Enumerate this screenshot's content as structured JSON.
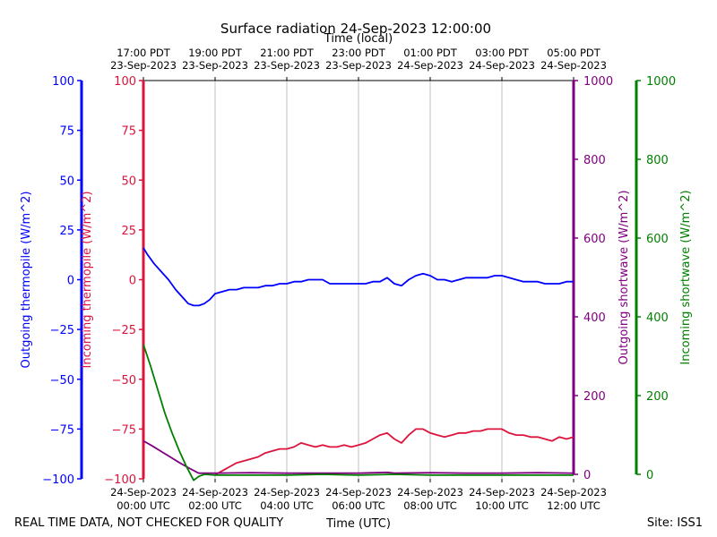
{
  "chart_data": {
    "type": "line",
    "title": "Surface radiation 24-Sep-2023 12:00:00",
    "top_axis_label": "Time (local)",
    "xlabel": "Time (UTC)",
    "xlim": [
      0,
      12
    ],
    "xtick_values": [
      0,
      2,
      4,
      6,
      8,
      10,
      12
    ],
    "xticks_utc": [
      [
        "24-Sep-2023",
        "00:00 UTC"
      ],
      [
        "24-Sep-2023",
        "02:00 UTC"
      ],
      [
        "24-Sep-2023",
        "04:00 UTC"
      ],
      [
        "24-Sep-2023",
        "06:00 UTC"
      ],
      [
        "24-Sep-2023",
        "08:00 UTC"
      ],
      [
        "24-Sep-2023",
        "10:00 UTC"
      ],
      [
        "24-Sep-2023",
        "12:00 UTC"
      ]
    ],
    "xticks_local": [
      [
        "17:00 PDT",
        "23-Sep-2023"
      ],
      [
        "19:00 PDT",
        "23-Sep-2023"
      ],
      [
        "21:00 PDT",
        "23-Sep-2023"
      ],
      [
        "23:00 PDT",
        "23-Sep-2023"
      ],
      [
        "01:00 PDT",
        "24-Sep-2023"
      ],
      [
        "03:00 PDT",
        "24-Sep-2023"
      ],
      [
        "05:00 PDT",
        "24-Sep-2023"
      ]
    ],
    "grid": "vertical",
    "axes": {
      "outgoing_thermopile": {
        "label": "Outgoing thermopile (W/m^2)",
        "color": "#0000ff",
        "ylim": [
          -100,
          100
        ],
        "ticks": [
          -100,
          -75,
          -50,
          -25,
          0,
          25,
          50,
          75,
          100
        ]
      },
      "incoming_thermopile": {
        "label": "Incoming thermopile (W/m^2)",
        "color": "#dc143c",
        "ylim": [
          -100,
          100
        ],
        "ticks": [
          -100,
          -75,
          -50,
          -25,
          0,
          25,
          50,
          75,
          100
        ]
      },
      "outgoing_shortwave": {
        "label": "Outgoing shortwave (W/m^2)",
        "color": "#800080",
        "ylim": [
          0,
          1000
        ],
        "ticks": [
          0,
          200,
          400,
          600,
          800,
          1000
        ]
      },
      "incoming_shortwave": {
        "label": "Incoming shortwave (W/m^2)",
        "color": "#008000",
        "ylim": [
          0,
          1000
        ],
        "ticks": [
          0,
          200,
          400,
          600,
          800,
          1000
        ]
      }
    },
    "series": [
      {
        "axis": "outgoing_thermopile",
        "x": [
          0,
          0.1,
          0.3,
          0.5,
          0.7,
          0.9,
          1.1,
          1.25,
          1.4,
          1.55,
          1.7,
          1.85,
          2.0,
          2.2,
          2.4,
          2.6,
          2.8,
          3.0,
          3.2,
          3.4,
          3.6,
          3.8,
          4.0,
          4.2,
          4.4,
          4.6,
          4.8,
          5.0,
          5.2,
          5.4,
          5.6,
          5.8,
          6.0,
          6.2,
          6.4,
          6.6,
          6.8,
          7.0,
          7.2,
          7.4,
          7.6,
          7.8,
          8.0,
          8.2,
          8.4,
          8.6,
          8.8,
          9.0,
          9.2,
          9.4,
          9.6,
          9.8,
          10.0,
          10.2,
          10.4,
          10.6,
          10.8,
          11.0,
          11.2,
          11.4,
          11.6,
          11.8,
          12.0
        ],
        "y": [
          16,
          13,
          8,
          4,
          0,
          -5,
          -9,
          -12,
          -13,
          -13,
          -12,
          -10,
          -7,
          -6,
          -5,
          -5,
          -4,
          -4,
          -4,
          -3,
          -3,
          -2,
          -2,
          -1,
          -1,
          0,
          0,
          0,
          -2,
          -2,
          -2,
          -2,
          -2,
          -2,
          -1,
          -1,
          1,
          -2,
          -3,
          0,
          2,
          3,
          2,
          0,
          0,
          -1,
          0,
          1,
          1,
          1,
          1,
          2,
          2,
          1,
          0,
          -1,
          -1,
          -1,
          -2,
          -2,
          -2,
          -1,
          -1
        ]
      },
      {
        "axis": "incoming_thermopile",
        "x": [
          2.0,
          2.2,
          2.4,
          2.6,
          2.8,
          3.0,
          3.2,
          3.4,
          3.6,
          3.8,
          4.0,
          4.2,
          4.4,
          4.6,
          4.8,
          5.0,
          5.2,
          5.4,
          5.6,
          5.8,
          6.0,
          6.2,
          6.4,
          6.6,
          6.8,
          7.0,
          7.2,
          7.4,
          7.6,
          7.8,
          8.0,
          8.2,
          8.4,
          8.6,
          8.8,
          9.0,
          9.2,
          9.4,
          9.6,
          9.8,
          10.0,
          10.2,
          10.4,
          10.6,
          10.8,
          11.0,
          11.2,
          11.4,
          11.6,
          11.8,
          12.0
        ],
        "y": [
          -98,
          -96,
          -94,
          -92,
          -91,
          -90,
          -89,
          -87,
          -86,
          -85,
          -85,
          -84,
          -82,
          -83,
          -84,
          -83,
          -84,
          -84,
          -83,
          -84,
          -83,
          -82,
          -80,
          -78,
          -77,
          -80,
          -82,
          -78,
          -75,
          -75,
          -77,
          -78,
          -79,
          -78,
          -77,
          -77,
          -76,
          -76,
          -75,
          -75,
          -75,
          -77,
          -78,
          -78,
          -79,
          -79,
          -80,
          -81,
          -79,
          -80,
          -79
        ]
      },
      {
        "axis": "outgoing_shortwave",
        "x": [
          0,
          0.25,
          0.5,
          0.75,
          1.0,
          1.25,
          1.5,
          1.55,
          2.0,
          3.0,
          4.0,
          5.0,
          6.0,
          6.8,
          7.0,
          8.0,
          9.0,
          10.0,
          11.0,
          12.0
        ],
        "y": [
          85,
          72,
          58,
          44,
          30,
          17,
          5,
          3,
          3,
          4,
          3,
          3,
          3,
          5,
          3,
          4,
          3,
          3,
          4,
          3
        ]
      },
      {
        "axis": "incoming_shortwave",
        "x": [
          0,
          0.2,
          0.4,
          0.6,
          0.8,
          1.0,
          1.2,
          1.4,
          1.55,
          1.7,
          2.0,
          3.0,
          4.0,
          5.0,
          6.0,
          7.0,
          8.0,
          9.0,
          10.0,
          11.0,
          12.0
        ],
        "y": [
          330,
          275,
          215,
          155,
          105,
          60,
          20,
          -15,
          -5,
          0,
          -2,
          -2,
          -2,
          0,
          -2,
          0,
          -2,
          -2,
          -2,
          -2,
          -2
        ]
      }
    ]
  },
  "footer": {
    "quality_note": "REAL TIME DATA, NOT CHECKED FOR QUALITY",
    "site": "Site: ISS1"
  }
}
